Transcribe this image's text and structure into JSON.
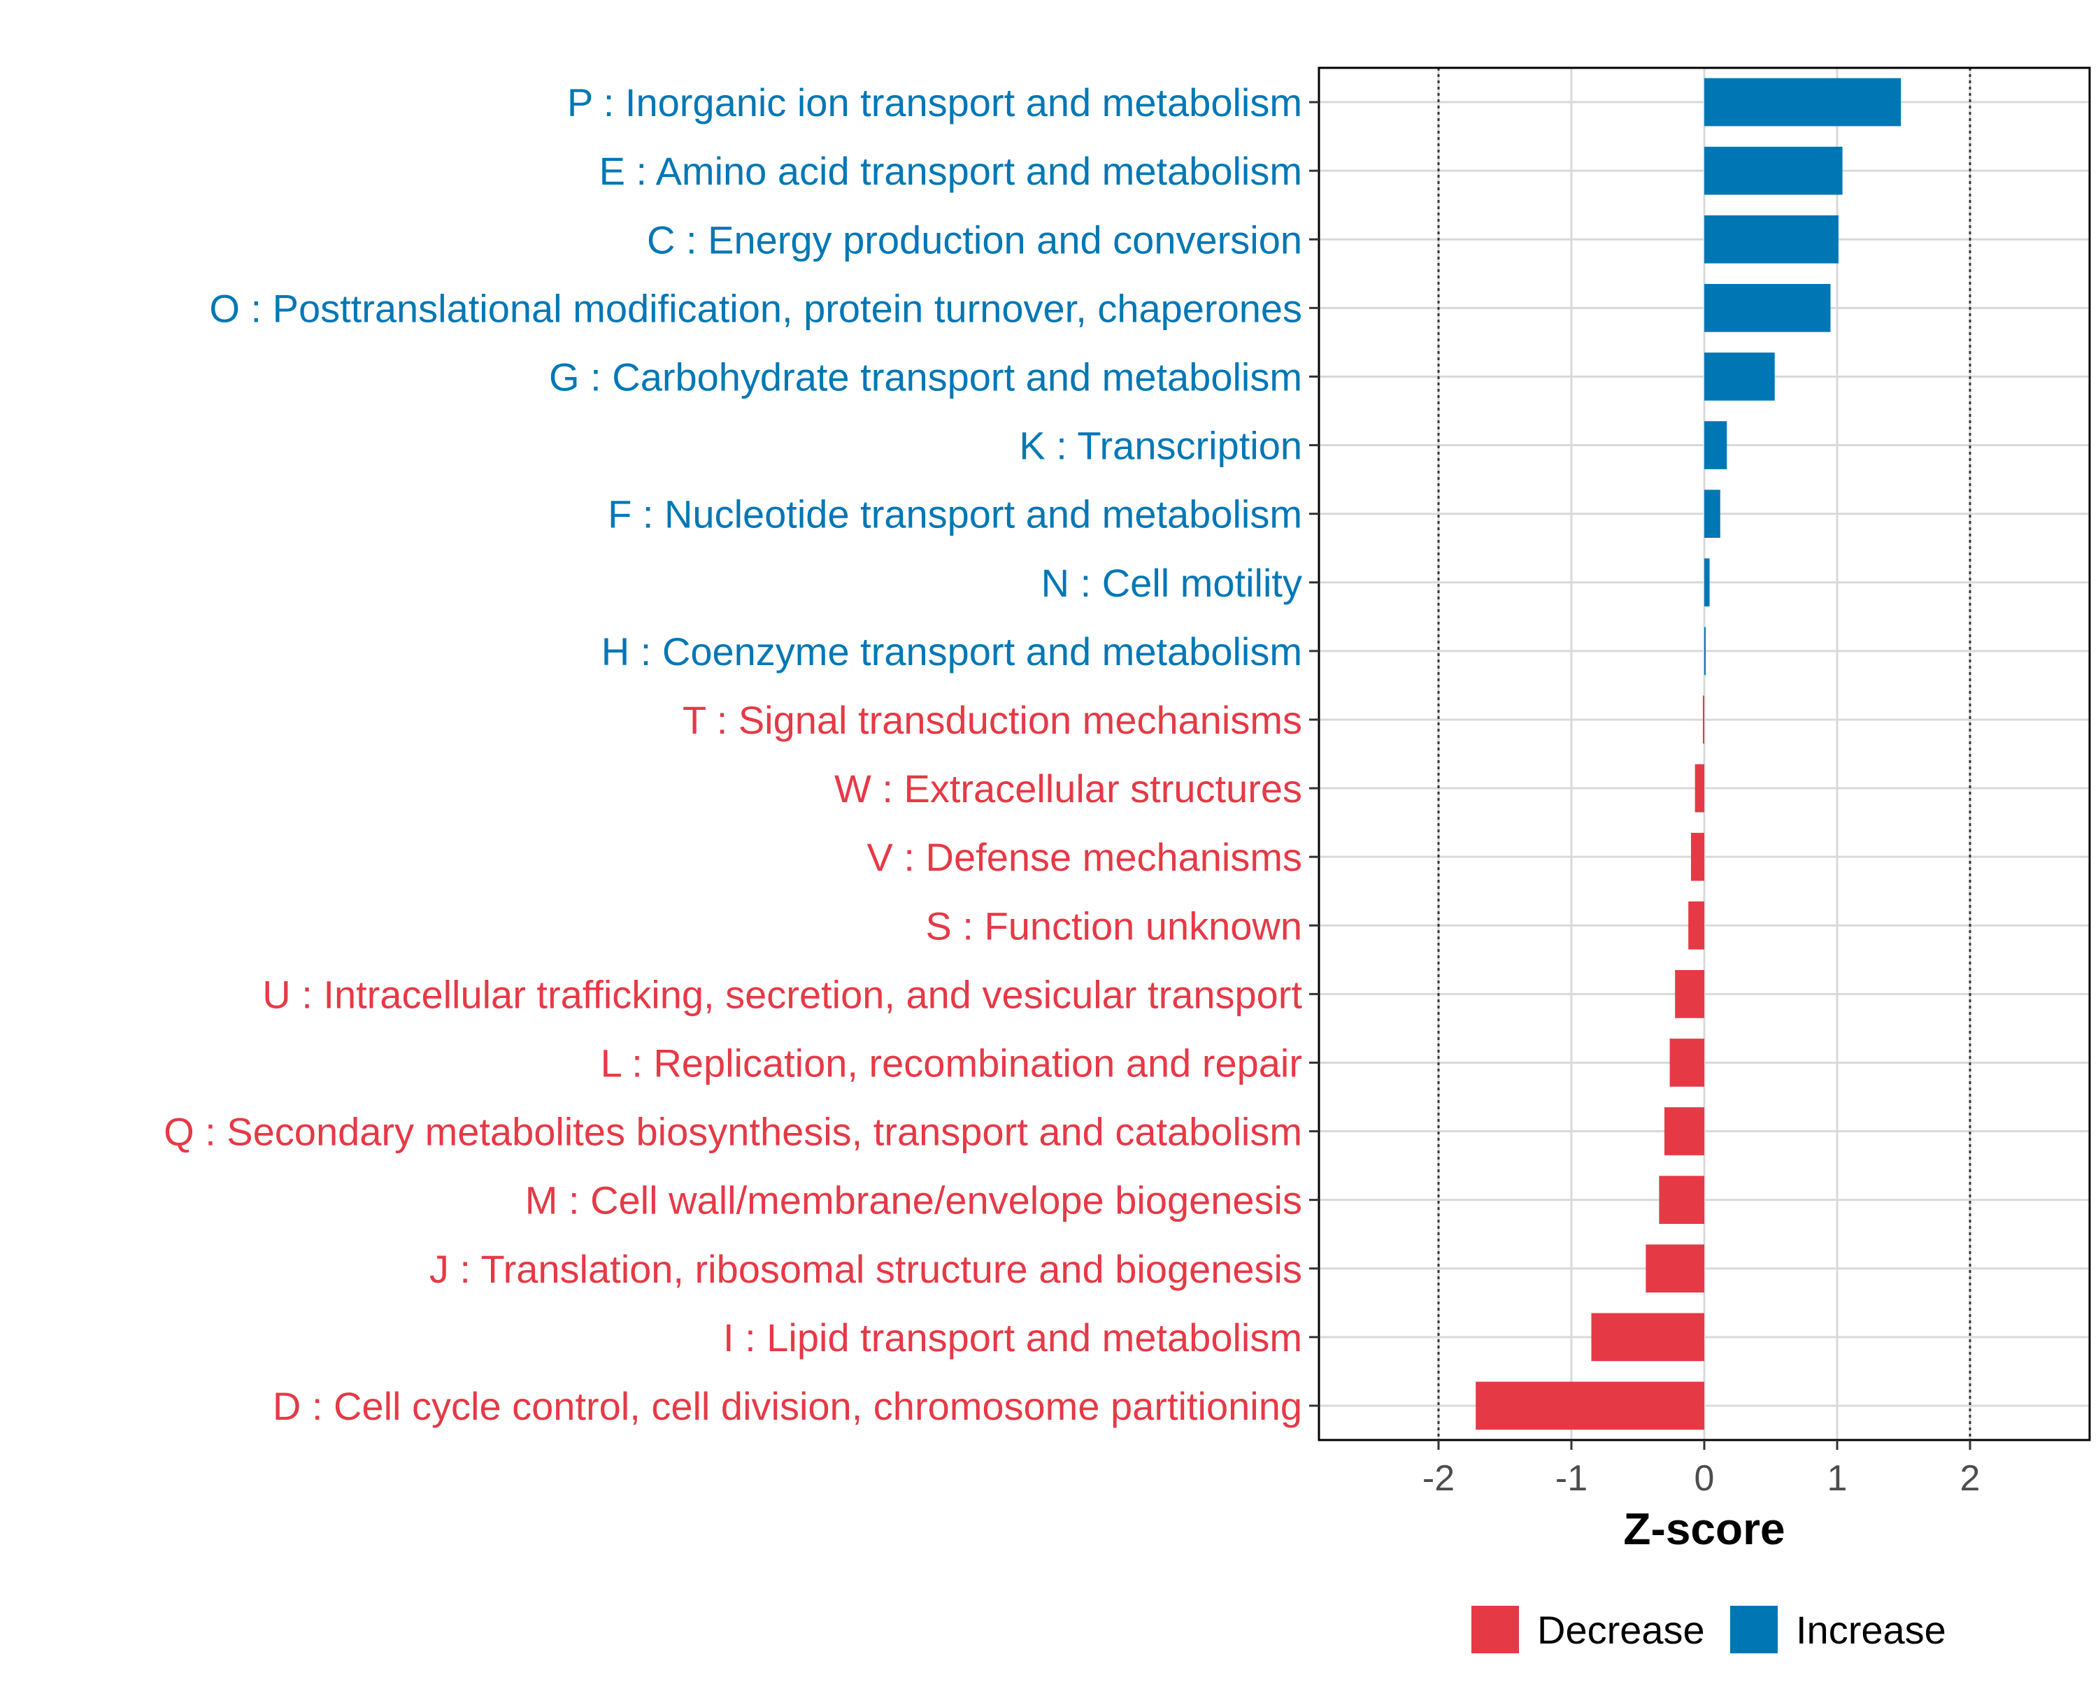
{
  "chart_data": {
    "type": "bar",
    "orientation": "horizontal",
    "title": "",
    "xlabel": "Z-score",
    "ylabel": "",
    "xlim": [
      -2.9,
      2.9
    ],
    "xticks": [
      -2,
      -1,
      0,
      1,
      2
    ],
    "xtick_labels": [
      "-2",
      "-1",
      "0",
      "1",
      "2"
    ],
    "reference_lines": [
      -2,
      2
    ],
    "grid": true,
    "categories": [
      "P : Inorganic ion transport and metabolism",
      "E : Amino acid transport and metabolism",
      "C : Energy production and conversion",
      "O : Posttranslational modification, protein turnover, chaperones",
      "G : Carbohydrate transport and metabolism",
      "K : Transcription",
      "F : Nucleotide transport and metabolism",
      "N : Cell motility",
      "H : Coenzyme transport and metabolism",
      "T : Signal transduction mechanisms",
      "W : Extracellular structures",
      "V : Defense mechanisms",
      "S : Function unknown",
      "U : Intracellular trafficking, secretion, and vesicular transport",
      "L : Replication, recombination and repair",
      "Q : Secondary metabolites biosynthesis, transport and catabolism",
      "M : Cell wall/membrane/envelope biogenesis",
      "J : Translation, ribosomal structure and biogenesis",
      "I : Lipid transport and metabolism",
      "D : Cell cycle control, cell division, chromosome partitioning"
    ],
    "values": [
      1.48,
      1.04,
      1.01,
      0.95,
      0.53,
      0.17,
      0.12,
      0.04,
      0.01,
      -0.01,
      -0.07,
      -0.1,
      -0.12,
      -0.22,
      -0.26,
      -0.3,
      -0.34,
      -0.44,
      -0.85,
      -1.72
    ],
    "groups": [
      "Increase",
      "Increase",
      "Increase",
      "Increase",
      "Increase",
      "Increase",
      "Increase",
      "Increase",
      "Increase",
      "Decrease",
      "Decrease",
      "Decrease",
      "Decrease",
      "Decrease",
      "Decrease",
      "Decrease",
      "Decrease",
      "Decrease",
      "Decrease",
      "Decrease"
    ],
    "colors": {
      "Increase": "#0077B5",
      "Decrease": "#E63946"
    },
    "legend": {
      "position": "bottom",
      "entries": [
        {
          "label": "Decrease",
          "color": "#E63946"
        },
        {
          "label": "Increase",
          "color": "#0077B5"
        }
      ]
    }
  }
}
